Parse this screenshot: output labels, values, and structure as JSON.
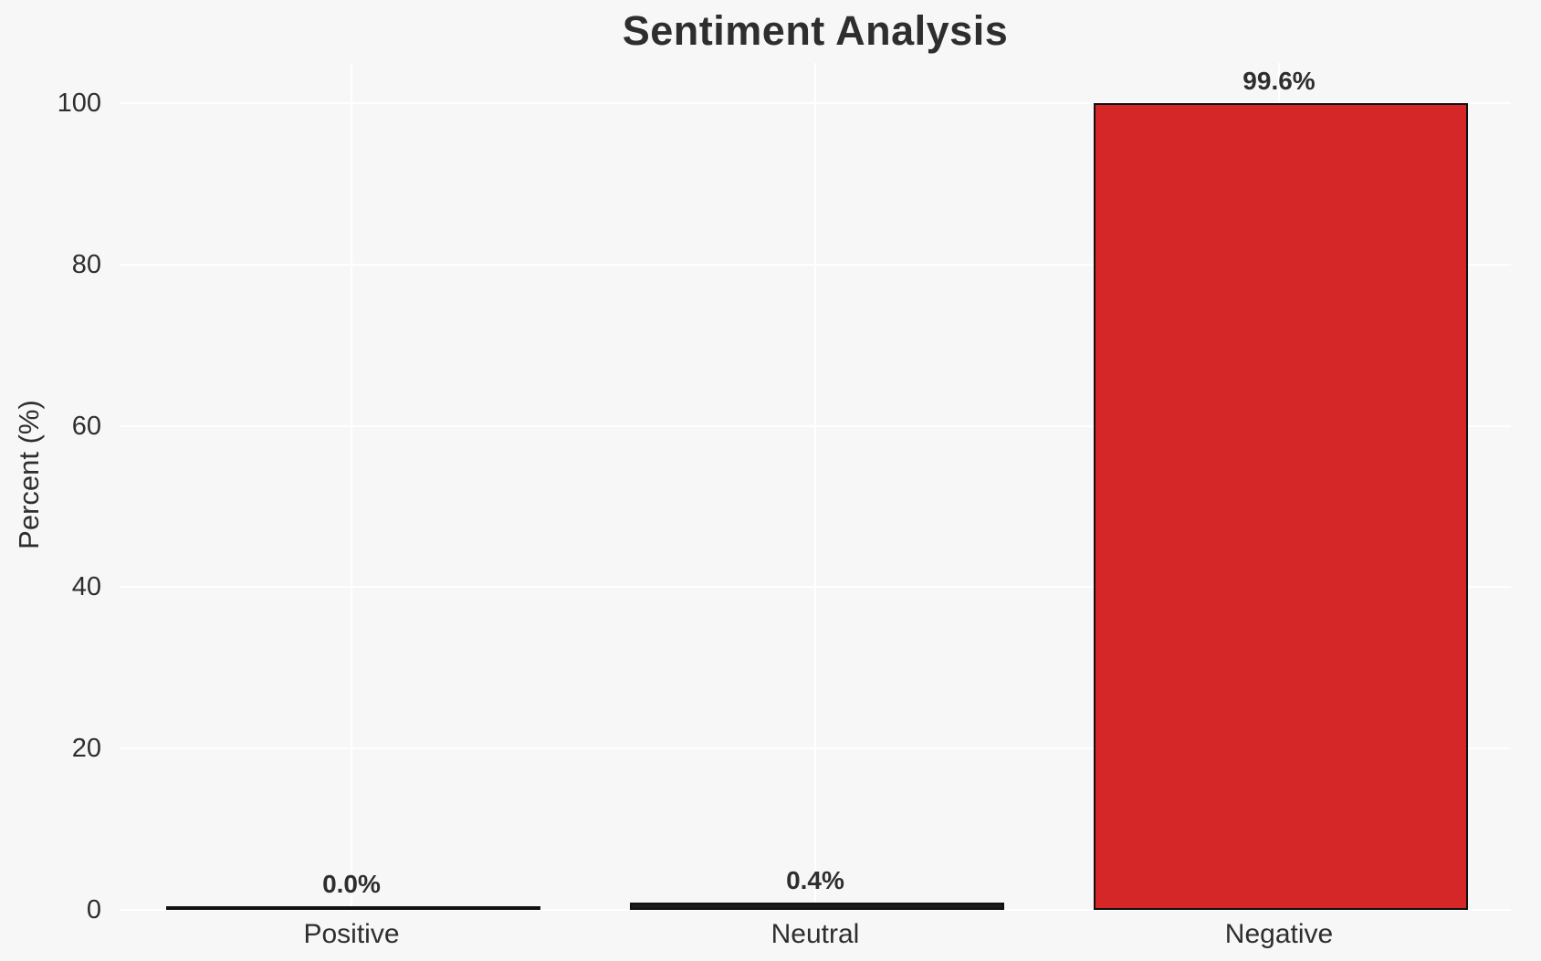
{
  "chart_data": {
    "type": "bar",
    "title": "Sentiment Analysis",
    "ylabel": "Percent (%)",
    "xlabel": "",
    "categories": [
      "Positive",
      "Neutral",
      "Negative"
    ],
    "values": [
      0.0,
      0.4,
      99.6
    ],
    "value_labels": [
      "0.0%",
      "0.4%",
      "99.6%"
    ],
    "yticks": [
      0,
      20,
      40,
      60,
      80,
      100
    ],
    "ylim": [
      0,
      105
    ],
    "grid": "on",
    "legend": "none",
    "bar_width_fraction": 0.8,
    "colors": {
      "bar_fills": [
        "#1a1a1a",
        "#1a1a1a",
        "#d62728"
      ],
      "bar_edge": "#111111",
      "background": "#f7f7f7",
      "gridline": "#ffffff",
      "text": "#2e2e2e"
    }
  }
}
